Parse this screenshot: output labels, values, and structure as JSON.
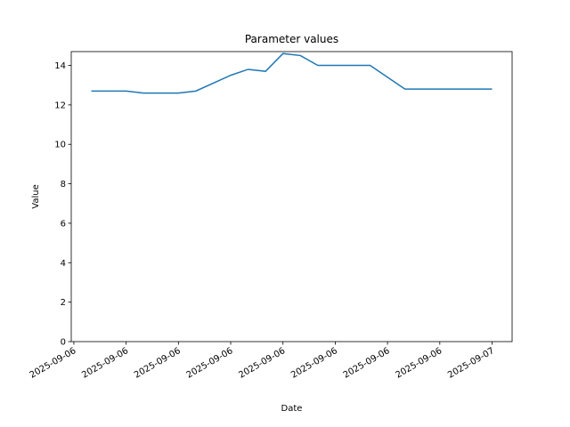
{
  "chart_data": {
    "type": "line",
    "title": "Parameter values",
    "x_label": "Date",
    "y_label": "Value",
    "x": [
      "2025-09-06T01:00",
      "2025-09-06T03:00",
      "2025-09-06T04:00",
      "2025-09-06T06:00",
      "2025-09-06T07:00",
      "2025-09-06T09:00",
      "2025-09-06T10:00",
      "2025-09-06T11:00",
      "2025-09-06T12:00",
      "2025-09-06T13:00",
      "2025-09-06T14:00",
      "2025-09-06T15:00",
      "2025-09-06T17:00",
      "2025-09-06T19:00",
      "2025-09-06T21:00",
      "2025-09-07T00:00"
    ],
    "series": [
      {
        "name": "Value",
        "color": "#1f77b4",
        "values": [
          12.7,
          12.7,
          12.6,
          12.6,
          12.7,
          13.5,
          13.8,
          13.7,
          14.6,
          14.5,
          14.0,
          14.0,
          14.0,
          12.8,
          12.8,
          12.8
        ]
      }
    ],
    "xticks": [
      {
        "value": "2025-09-06T00:00",
        "label": "2025-09-06"
      },
      {
        "value": "2025-09-06T03:00",
        "label": "2025-09-06"
      },
      {
        "value": "2025-09-06T06:00",
        "label": "2025-09-06"
      },
      {
        "value": "2025-09-06T09:00",
        "label": "2025-09-06"
      },
      {
        "value": "2025-09-06T12:00",
        "label": "2025-09-06"
      },
      {
        "value": "2025-09-06T15:00",
        "label": "2025-09-06"
      },
      {
        "value": "2025-09-06T18:00",
        "label": "2025-09-06"
      },
      {
        "value": "2025-09-06T21:00",
        "label": "2025-09-06"
      },
      {
        "value": "2025-09-07T00:00",
        "label": "2025-09-07"
      }
    ],
    "ylim": [
      0,
      14.7
    ],
    "yticks": [
      0,
      2,
      4,
      6,
      8,
      10,
      12,
      14
    ],
    "grid": false
  }
}
